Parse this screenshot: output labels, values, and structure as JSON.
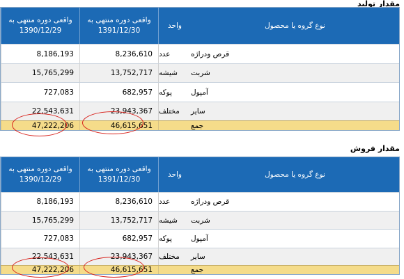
{
  "production": {
    "title": "مقدار تولید",
    "headers": {
      "product_group": "نوع گروه یا محصول",
      "unit": "واحد",
      "actual_1391_line1": "واقعی دوره منتهی به",
      "actual_1391_line2": "1391/12/30",
      "actual_1390_line1": "واقعی دوره منتهی به",
      "actual_1390_line2": "1390/12/29"
    },
    "rows": [
      {
        "product": "قرص ودراژه",
        "unit": "عدد",
        "v1391": "8,236,610",
        "v1390": "8,186,193"
      },
      {
        "product": "شربت",
        "unit": "شیشه",
        "v1391": "13,752,717",
        "v1390": "15,765,299"
      },
      {
        "product": "آمپول",
        "unit": "پوکه",
        "v1391": "682,957",
        "v1390": "727,083"
      },
      {
        "product": "سایر",
        "unit": "مختلف",
        "v1391": "23,943,367",
        "v1390": "22,543,631"
      }
    ],
    "total": {
      "label": "جمع",
      "v1391": "46,615,651",
      "v1390": "47,222,206"
    }
  },
  "sales": {
    "title": "مقدار فروش",
    "headers": {
      "product_group": "نوع گروه یا محصول",
      "unit": "واحد",
      "actual_1391_line1": "واقعی دوره منتهی به",
      "actual_1391_line2": "1391/12/30",
      "actual_1390_line1": "واقعی دوره منتهی به",
      "actual_1390_line2": "1390/12/29"
    },
    "rows": [
      {
        "product": "قرص ودراژه",
        "unit": "عدد",
        "v1391": "8,236,610",
        "v1390": "8,186,193"
      },
      {
        "product": "شربت",
        "unit": "شیشه",
        "v1391": "13,752,717",
        "v1390": "15,765,299"
      },
      {
        "product": "آمپول",
        "unit": "پوکه",
        "v1391": "682,957",
        "v1390": "727,083"
      },
      {
        "product": "سایر",
        "unit": "مختلف",
        "v1391": "23,943,367",
        "v1390": "22,543,631"
      }
    ],
    "total": {
      "label": "جمع",
      "v1391": "46,615,651",
      "v1390": "47,222,206"
    }
  },
  "colors": {
    "header_bg": "#1c6ab5",
    "alt_row_bg": "#f0f0f0",
    "total_row_bg": "#f5dc8a",
    "annotation_circle": "#d8221c"
  }
}
